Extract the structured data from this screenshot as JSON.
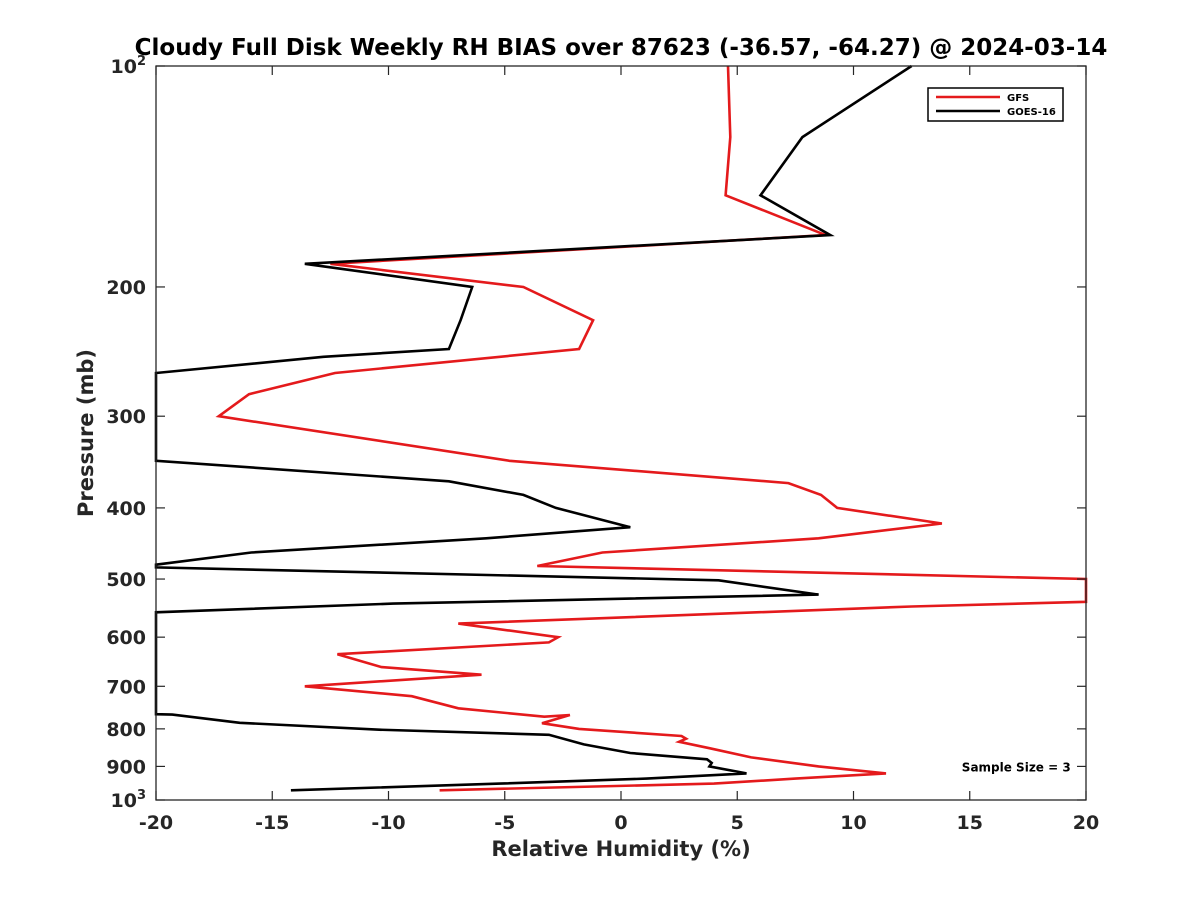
{
  "chart_data": {
    "type": "line",
    "title": "Cloudy Full Disk Weekly RH BIAS over 87623 (-36.57, -64.27) @ 2024-03-14",
    "xlabel": "Relative Humidity (%)",
    "ylabel": "Pressure (mb)",
    "xlim": [
      -20,
      20
    ],
    "ylim": [
      100,
      1000
    ],
    "y_scale": "log",
    "y_reversed": true,
    "grid": false,
    "legend_position": "top-right",
    "x_ticks": [
      -20,
      -15,
      -10,
      -5,
      0,
      5,
      10,
      15,
      20
    ],
    "x_tick_labels": [
      "-20",
      "-15",
      "-10",
      "-5",
      "0",
      "5",
      "10",
      "15",
      "20"
    ],
    "y_ticks": [
      {
        "value": 100,
        "base": "10",
        "exp": "2",
        "label": ""
      },
      {
        "value": 200,
        "base": "",
        "exp": "",
        "label": "200"
      },
      {
        "value": 300,
        "base": "",
        "exp": "",
        "label": "300"
      },
      {
        "value": 400,
        "base": "",
        "exp": "",
        "label": "400"
      },
      {
        "value": 500,
        "base": "",
        "exp": "",
        "label": "500"
      },
      {
        "value": 600,
        "base": "",
        "exp": "",
        "label": "600"
      },
      {
        "value": 700,
        "base": "",
        "exp": "",
        "label": "700"
      },
      {
        "value": 800,
        "base": "",
        "exp": "",
        "label": "800"
      },
      {
        "value": 900,
        "base": "",
        "exp": "",
        "label": "900"
      },
      {
        "value": 1000,
        "base": "10",
        "exp": "3",
        "label": ""
      }
    ],
    "series": [
      {
        "name": "GFS",
        "color": "#e41a1c",
        "points": [
          [
            4.6,
            100
          ],
          [
            4.7,
            125
          ],
          [
            4.5,
            150
          ],
          [
            8.8,
            170
          ],
          [
            -12.5,
            186
          ],
          [
            -4.2,
            200
          ],
          [
            -1.2,
            222
          ],
          [
            -1.8,
            243
          ],
          [
            -12.3,
            262
          ],
          [
            -16.0,
            280
          ],
          [
            -17.3,
            300
          ],
          [
            -4.8,
            345
          ],
          [
            7.2,
            370
          ],
          [
            8.6,
            384
          ],
          [
            9.3,
            400
          ],
          [
            13.8,
            420
          ],
          [
            8.5,
            440
          ],
          [
            -0.8,
            460
          ],
          [
            -3.6,
            480
          ],
          [
            20.0,
            500
          ],
          [
            20.0,
            537
          ],
          [
            12.5,
            545
          ],
          [
            -7.0,
            575
          ],
          [
            -2.7,
            600
          ],
          [
            -3.1,
            610
          ],
          [
            -12.2,
            633
          ],
          [
            -10.3,
            659
          ],
          [
            -6.0,
            675
          ],
          [
            -13.6,
            700
          ],
          [
            -9.0,
            722
          ],
          [
            -7.0,
            750
          ],
          [
            -3.3,
            770
          ],
          [
            -2.2,
            766
          ],
          [
            -3.4,
            786
          ],
          [
            -1.8,
            800
          ],
          [
            2.6,
            818
          ],
          [
            2.8,
            825
          ],
          [
            2.5,
            833
          ],
          [
            3.8,
            850
          ],
          [
            5.6,
            875
          ],
          [
            8.5,
            900
          ],
          [
            11.4,
            920
          ],
          [
            7.5,
            935
          ],
          [
            4.0,
            950
          ],
          [
            -7.8,
            970
          ]
        ]
      },
      {
        "name": "GOES-16",
        "color": "#000000",
        "points": [
          [
            12.5,
            100
          ],
          [
            7.8,
            125
          ],
          [
            6.0,
            150
          ],
          [
            9.0,
            170
          ],
          [
            -13.6,
            186
          ],
          [
            -6.4,
            200
          ],
          [
            -6.9,
            222
          ],
          [
            -7.4,
            243
          ],
          [
            -12.8,
            249
          ],
          [
            -20.0,
            262
          ],
          [
            -20.0,
            345
          ],
          [
            -7.4,
            368
          ],
          [
            -4.2,
            384
          ],
          [
            -2.8,
            400
          ],
          [
            0.4,
            425
          ],
          [
            -5.8,
            440
          ],
          [
            -15.9,
            460
          ],
          [
            -20.0,
            478
          ],
          [
            -20.0,
            482
          ],
          [
            4.2,
            502
          ],
          [
            8.5,
            525
          ],
          [
            -9.8,
            540
          ],
          [
            -20.0,
            555
          ],
          [
            -20.0,
            764
          ],
          [
            -19.3,
            765
          ],
          [
            -16.4,
            785
          ],
          [
            -10.4,
            802
          ],
          [
            -3.1,
            815
          ],
          [
            -1.6,
            840
          ],
          [
            0.4,
            863
          ],
          [
            3.7,
            880
          ],
          [
            3.9,
            890
          ],
          [
            3.8,
            900
          ],
          [
            5.4,
            920
          ],
          [
            1.1,
            935
          ],
          [
            -5.2,
            950
          ],
          [
            -14.2,
            970
          ]
        ]
      }
    ],
    "annotations": [
      {
        "text": "Sample Size = 3",
        "x": 17,
        "y": 900
      }
    ]
  }
}
